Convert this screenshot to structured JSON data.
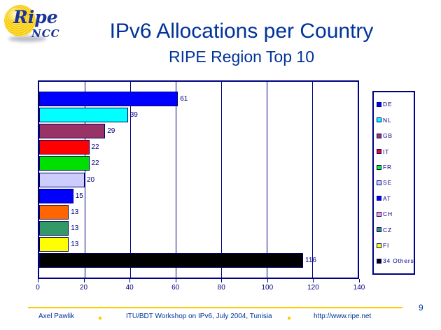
{
  "logo": {
    "ripe_text": "Ripe",
    "ncc_text": "NCC"
  },
  "header": {
    "title": "IPv6 Allocations per Country",
    "subtitle": "RIPE Region Top 10"
  },
  "chart_data": {
    "type": "bar",
    "orientation": "horizontal",
    "title": "IPv6 Allocations per Country",
    "subtitle": "RIPE Region Top 10",
    "categories": [
      "DE",
      "NL",
      "GB",
      "IT",
      "FR",
      "SE",
      "AT",
      "CH",
      "CZ",
      "FI",
      "34 Others"
    ],
    "values": [
      61,
      39,
      29,
      22,
      22,
      20,
      15,
      13,
      13,
      13,
      116
    ],
    "bar_colors": [
      "#0000FF",
      "#00FFFF",
      "#993366",
      "#FF0000",
      "#00E000",
      "#CCCCFF",
      "#0000FF",
      "#FF6600",
      "#339966",
      "#FFFF00",
      "#000000"
    ],
    "legend_entries": [
      {
        "label": "DE",
        "color": "#0000FF"
      },
      {
        "label": "NL",
        "color": "#00FFFF"
      },
      {
        "label": "GB",
        "color": "#993366"
      },
      {
        "label": "IT",
        "color": "#FF0000"
      },
      {
        "label": "FR",
        "color": "#00FF00"
      },
      {
        "label": "SE",
        "color": "#CCCCFF"
      },
      {
        "label": "AT",
        "color": "#0000FF"
      },
      {
        "label": "CH",
        "color": "#FF99CC"
      },
      {
        "label": "CZ",
        "color": "#339966"
      },
      {
        "label": "FI",
        "color": "#FFFF00"
      },
      {
        "label": "34 Others",
        "color": "#000000"
      }
    ],
    "xlim": [
      0,
      140
    ],
    "x_ticks": [
      0,
      20,
      40,
      60,
      80,
      100,
      120,
      140
    ],
    "grid": true,
    "legend_position": "right",
    "value_labels_shown": true
  },
  "footer": {
    "author": "Axel Pawlik",
    "event": "ITU/BDT Workshop on IPv6, July 2004, Tunisia",
    "url": "http://www.ripe.net",
    "page_number": "9"
  },
  "colors": {
    "title_navy": "#003399",
    "chart_navy": "#000080",
    "accent_gold": "#FFCC00"
  }
}
